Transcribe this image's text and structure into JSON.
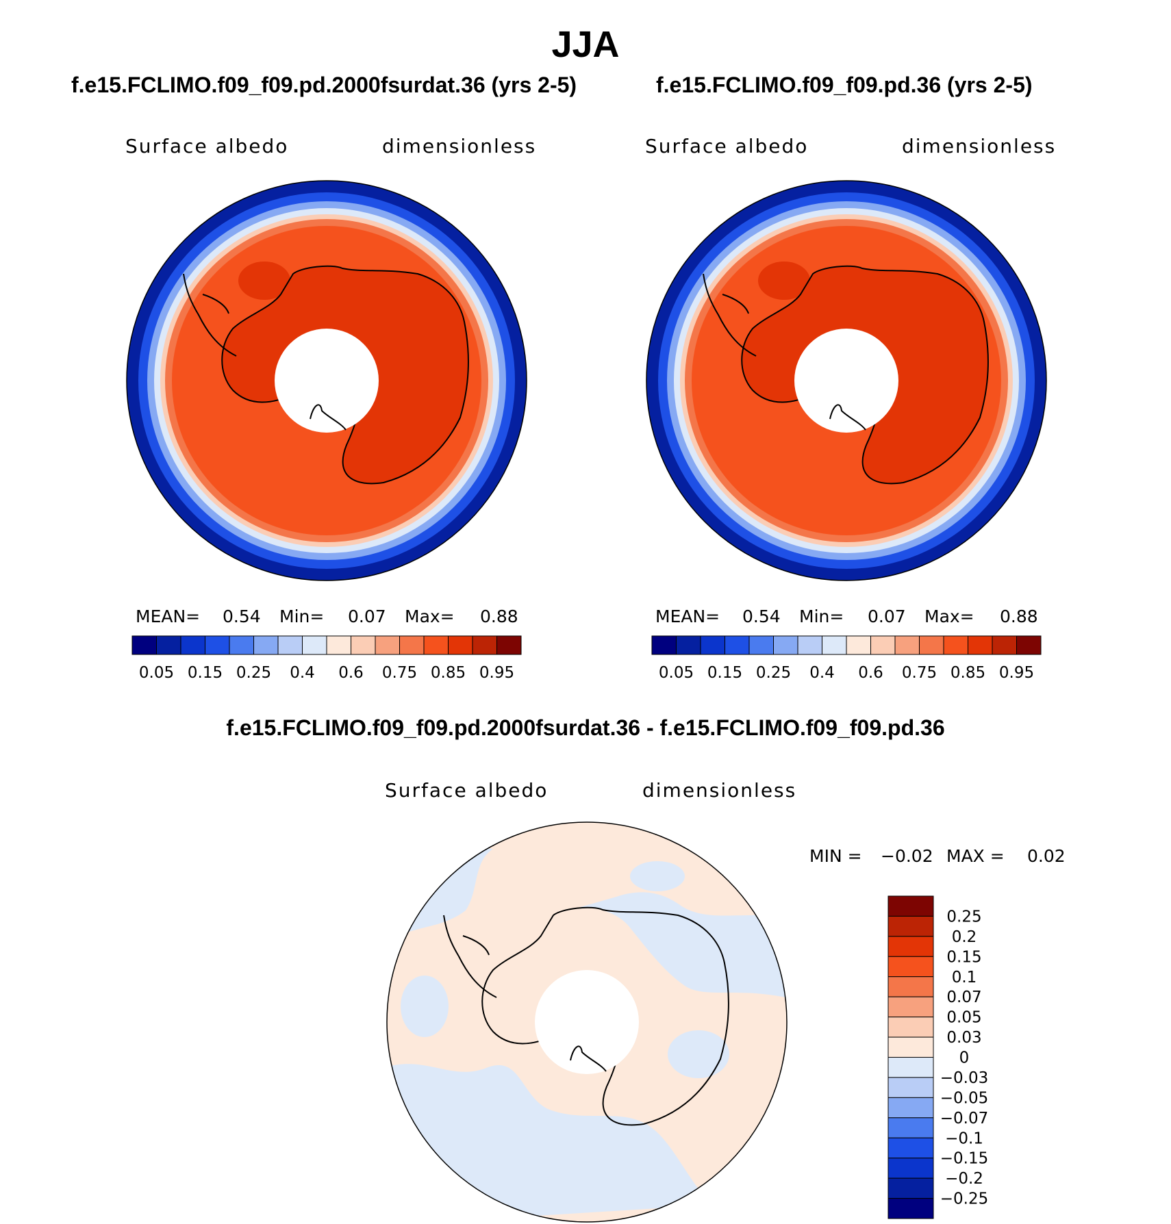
{
  "title": "JJA",
  "panels": [
    {
      "title": "f.e15.FCLIMO.f09_f09.pd.2000fsurdat.36 (yrs 2-5)",
      "variable": "Surface albedo",
      "units": "dimensionless",
      "stats": {
        "mean_label": "MEAN=",
        "mean": "0.54",
        "min_label": "Min=",
        "min": "0.07",
        "max_label": "Max=",
        "max": "0.88"
      }
    },
    {
      "title": "f.e15.FCLIMO.f09_f09.pd.36 (yrs 2-5)",
      "variable": "Surface albedo",
      "units": "dimensionless",
      "stats": {
        "mean_label": "MEAN=",
        "mean": "0.54",
        "min_label": "Min=",
        "min": "0.07",
        "max_label": "Max=",
        "max": "0.88"
      }
    }
  ],
  "difference": {
    "title": "f.e15.FCLIMO.f09_f09.pd.2000fsurdat.36 - f.e15.FCLIMO.f09_f09.pd.36",
    "variable": "Surface albedo",
    "units": "dimensionless",
    "stats": {
      "min_label": "MIN =",
      "min": "−0.02",
      "max_label": "MAX =",
      "max": "0.02"
    }
  },
  "chart_data": [
    {
      "type": "heatmap",
      "projection": "south polar stereographic",
      "title": "f.e15.FCLIMO.f09_f09.pd.2000fsurdat.36 (yrs 2-5)",
      "variable": "Surface albedo",
      "units": "dimensionless",
      "mean": 0.54,
      "min": 0.07,
      "max": 0.88,
      "colorbar": {
        "orientation": "horizontal",
        "levels": [
          0.05,
          0.1,
          0.15,
          0.2,
          0.25,
          0.3,
          0.4,
          0.5,
          0.6,
          0.7,
          0.75,
          0.8,
          0.85,
          0.9,
          0.95
        ],
        "tick_labels": [
          "0.05",
          "0.15",
          "0.25",
          "0.4",
          "0.6",
          "0.75",
          "0.85",
          "0.95"
        ],
        "colors": [
          "#00007f",
          "#0520a0",
          "#0b35cc",
          "#1e50e6",
          "#4a7bef",
          "#86a9f3",
          "#b9cdf6",
          "#dde9f9",
          "#fde9db",
          "#fbcdb5",
          "#f7a17e",
          "#f47649",
          "#f5521d",
          "#e33506",
          "#bc2405",
          "#7d0502"
        ]
      }
    },
    {
      "type": "heatmap",
      "projection": "south polar stereographic",
      "title": "f.e15.FCLIMO.f09_f09.pd.36 (yrs 2-5)",
      "variable": "Surface albedo",
      "units": "dimensionless",
      "mean": 0.54,
      "min": 0.07,
      "max": 0.88,
      "colorbar": {
        "orientation": "horizontal",
        "levels": [
          0.05,
          0.1,
          0.15,
          0.2,
          0.25,
          0.3,
          0.4,
          0.5,
          0.6,
          0.7,
          0.75,
          0.8,
          0.85,
          0.9,
          0.95
        ],
        "tick_labels": [
          "0.05",
          "0.15",
          "0.25",
          "0.4",
          "0.6",
          "0.75",
          "0.85",
          "0.95"
        ],
        "colors": [
          "#00007f",
          "#0520a0",
          "#0b35cc",
          "#1e50e6",
          "#4a7bef",
          "#86a9f3",
          "#b9cdf6",
          "#dde9f9",
          "#fde9db",
          "#fbcdb5",
          "#f7a17e",
          "#f47649",
          "#f5521d",
          "#e33506",
          "#bc2405",
          "#7d0502"
        ]
      }
    },
    {
      "type": "heatmap",
      "projection": "south polar stereographic",
      "title": "f.e15.FCLIMO.f09_f09.pd.2000fsurdat.36 - f.e15.FCLIMO.f09_f09.pd.36",
      "variable": "Surface albedo",
      "units": "dimensionless",
      "min": -0.02,
      "max": 0.02,
      "colorbar": {
        "orientation": "vertical",
        "tick_labels": [
          "0.25",
          "0.2",
          "0.15",
          "0.1",
          "0.07",
          "0.05",
          "0.03",
          "0",
          "−0.03",
          "−0.05",
          "−0.07",
          "−0.1",
          "−0.15",
          "−0.2",
          "−0.25"
        ],
        "colors": [
          "#7d0502",
          "#bc2405",
          "#e33506",
          "#f5521d",
          "#f47649",
          "#f7a17e",
          "#fbcdb5",
          "#fde9db",
          "#dde9f9",
          "#b9cdf6",
          "#86a9f3",
          "#4a7bef",
          "#1e50e6",
          "#0b35cc",
          "#0520a0",
          "#00007f"
        ]
      }
    }
  ]
}
